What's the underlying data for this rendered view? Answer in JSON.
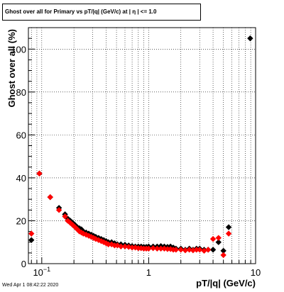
{
  "chart_data": {
    "type": "scatter",
    "title": "Ghost over all for Primary vs pT/|q| (GeV/c) at |  η | <= 1.0",
    "xlabel": "pT/|q| (GeV/c)",
    "ylabel": "Ghost over all (%)",
    "x_scale": "log",
    "xlim": [
      0.075,
      10
    ],
    "ylim": [
      0,
      110
    ],
    "grid": true,
    "x_ticks": [
      {
        "value": 0.1,
        "label": "10",
        "exp": "−1"
      },
      {
        "value": 1,
        "label": "1",
        "exp": ""
      },
      {
        "value": 10,
        "label": "10",
        "exp": ""
      }
    ],
    "y_ticks": [
      0,
      20,
      40,
      60,
      80,
      100
    ],
    "series": [
      {
        "color": "#000000",
        "marker": "diamond",
        "x": [
          0.08,
          0.095,
          0.12,
          0.145,
          0.165,
          0.175,
          0.185,
          0.195,
          0.205,
          0.215,
          0.225,
          0.235,
          0.245,
          0.26,
          0.275,
          0.29,
          0.305,
          0.32,
          0.34,
          0.36,
          0.38,
          0.4,
          0.42,
          0.45,
          0.48,
          0.51,
          0.55,
          0.6,
          0.65,
          0.7,
          0.75,
          0.8,
          0.85,
          0.9,
          0.95,
          1.0,
          1.1,
          1.2,
          1.3,
          1.4,
          1.5,
          1.6,
          1.7,
          1.8,
          2.0,
          2.2,
          2.4,
          2.6,
          2.8,
          3.0,
          3.3,
          3.6,
          4.0,
          4.5,
          5.0,
          5.6,
          8.9
        ],
        "y": [
          11,
          42,
          31,
          26,
          23,
          21,
          20,
          19,
          18,
          17,
          16.5,
          16,
          15,
          14.5,
          14,
          13.5,
          13,
          12.5,
          12,
          11.5,
          11,
          10.5,
          10,
          10,
          9.5,
          9,
          9,
          8.8,
          8.5,
          8.2,
          8,
          8,
          8,
          7.8,
          7.8,
          8,
          8,
          8,
          8.2,
          8,
          7.8,
          8,
          7.5,
          7,
          7,
          6.5,
          7,
          6.5,
          7,
          7,
          6.5,
          6.5,
          6.5,
          10,
          6,
          17,
          105
        ]
      },
      {
        "color": "#ff0000",
        "marker": "diamond",
        "x": [
          0.08,
          0.095,
          0.12,
          0.145,
          0.165,
          0.175,
          0.185,
          0.195,
          0.205,
          0.215,
          0.225,
          0.235,
          0.245,
          0.26,
          0.275,
          0.29,
          0.305,
          0.32,
          0.34,
          0.36,
          0.38,
          0.4,
          0.42,
          0.45,
          0.48,
          0.51,
          0.55,
          0.6,
          0.65,
          0.7,
          0.75,
          0.8,
          0.85,
          0.9,
          0.95,
          1.0,
          1.1,
          1.2,
          1.3,
          1.4,
          1.5,
          1.6,
          1.7,
          1.8,
          2.0,
          2.2,
          2.4,
          2.6,
          2.8,
          3.0,
          3.3,
          3.6,
          4.0,
          4.5,
          5.0,
          5.6
        ],
        "y": [
          14,
          42,
          31,
          25,
          22,
          20,
          19,
          18,
          17,
          16,
          15,
          14.5,
          14,
          13.5,
          13,
          12.5,
          12,
          11.5,
          11,
          10.5,
          10,
          9.5,
          9,
          9,
          8.5,
          8.5,
          8,
          8,
          7.8,
          7.5,
          7.5,
          7.2,
          7.2,
          7,
          7,
          7,
          7.2,
          7,
          7,
          7,
          6.8,
          6.8,
          6.5,
          6.5,
          6.5,
          6.2,
          6.5,
          6.2,
          6.5,
          6.5,
          6,
          6.5,
          11.5,
          12,
          4,
          14
        ]
      }
    ],
    "timestamp": "Wed Apr  1 08:42:22 2020"
  }
}
